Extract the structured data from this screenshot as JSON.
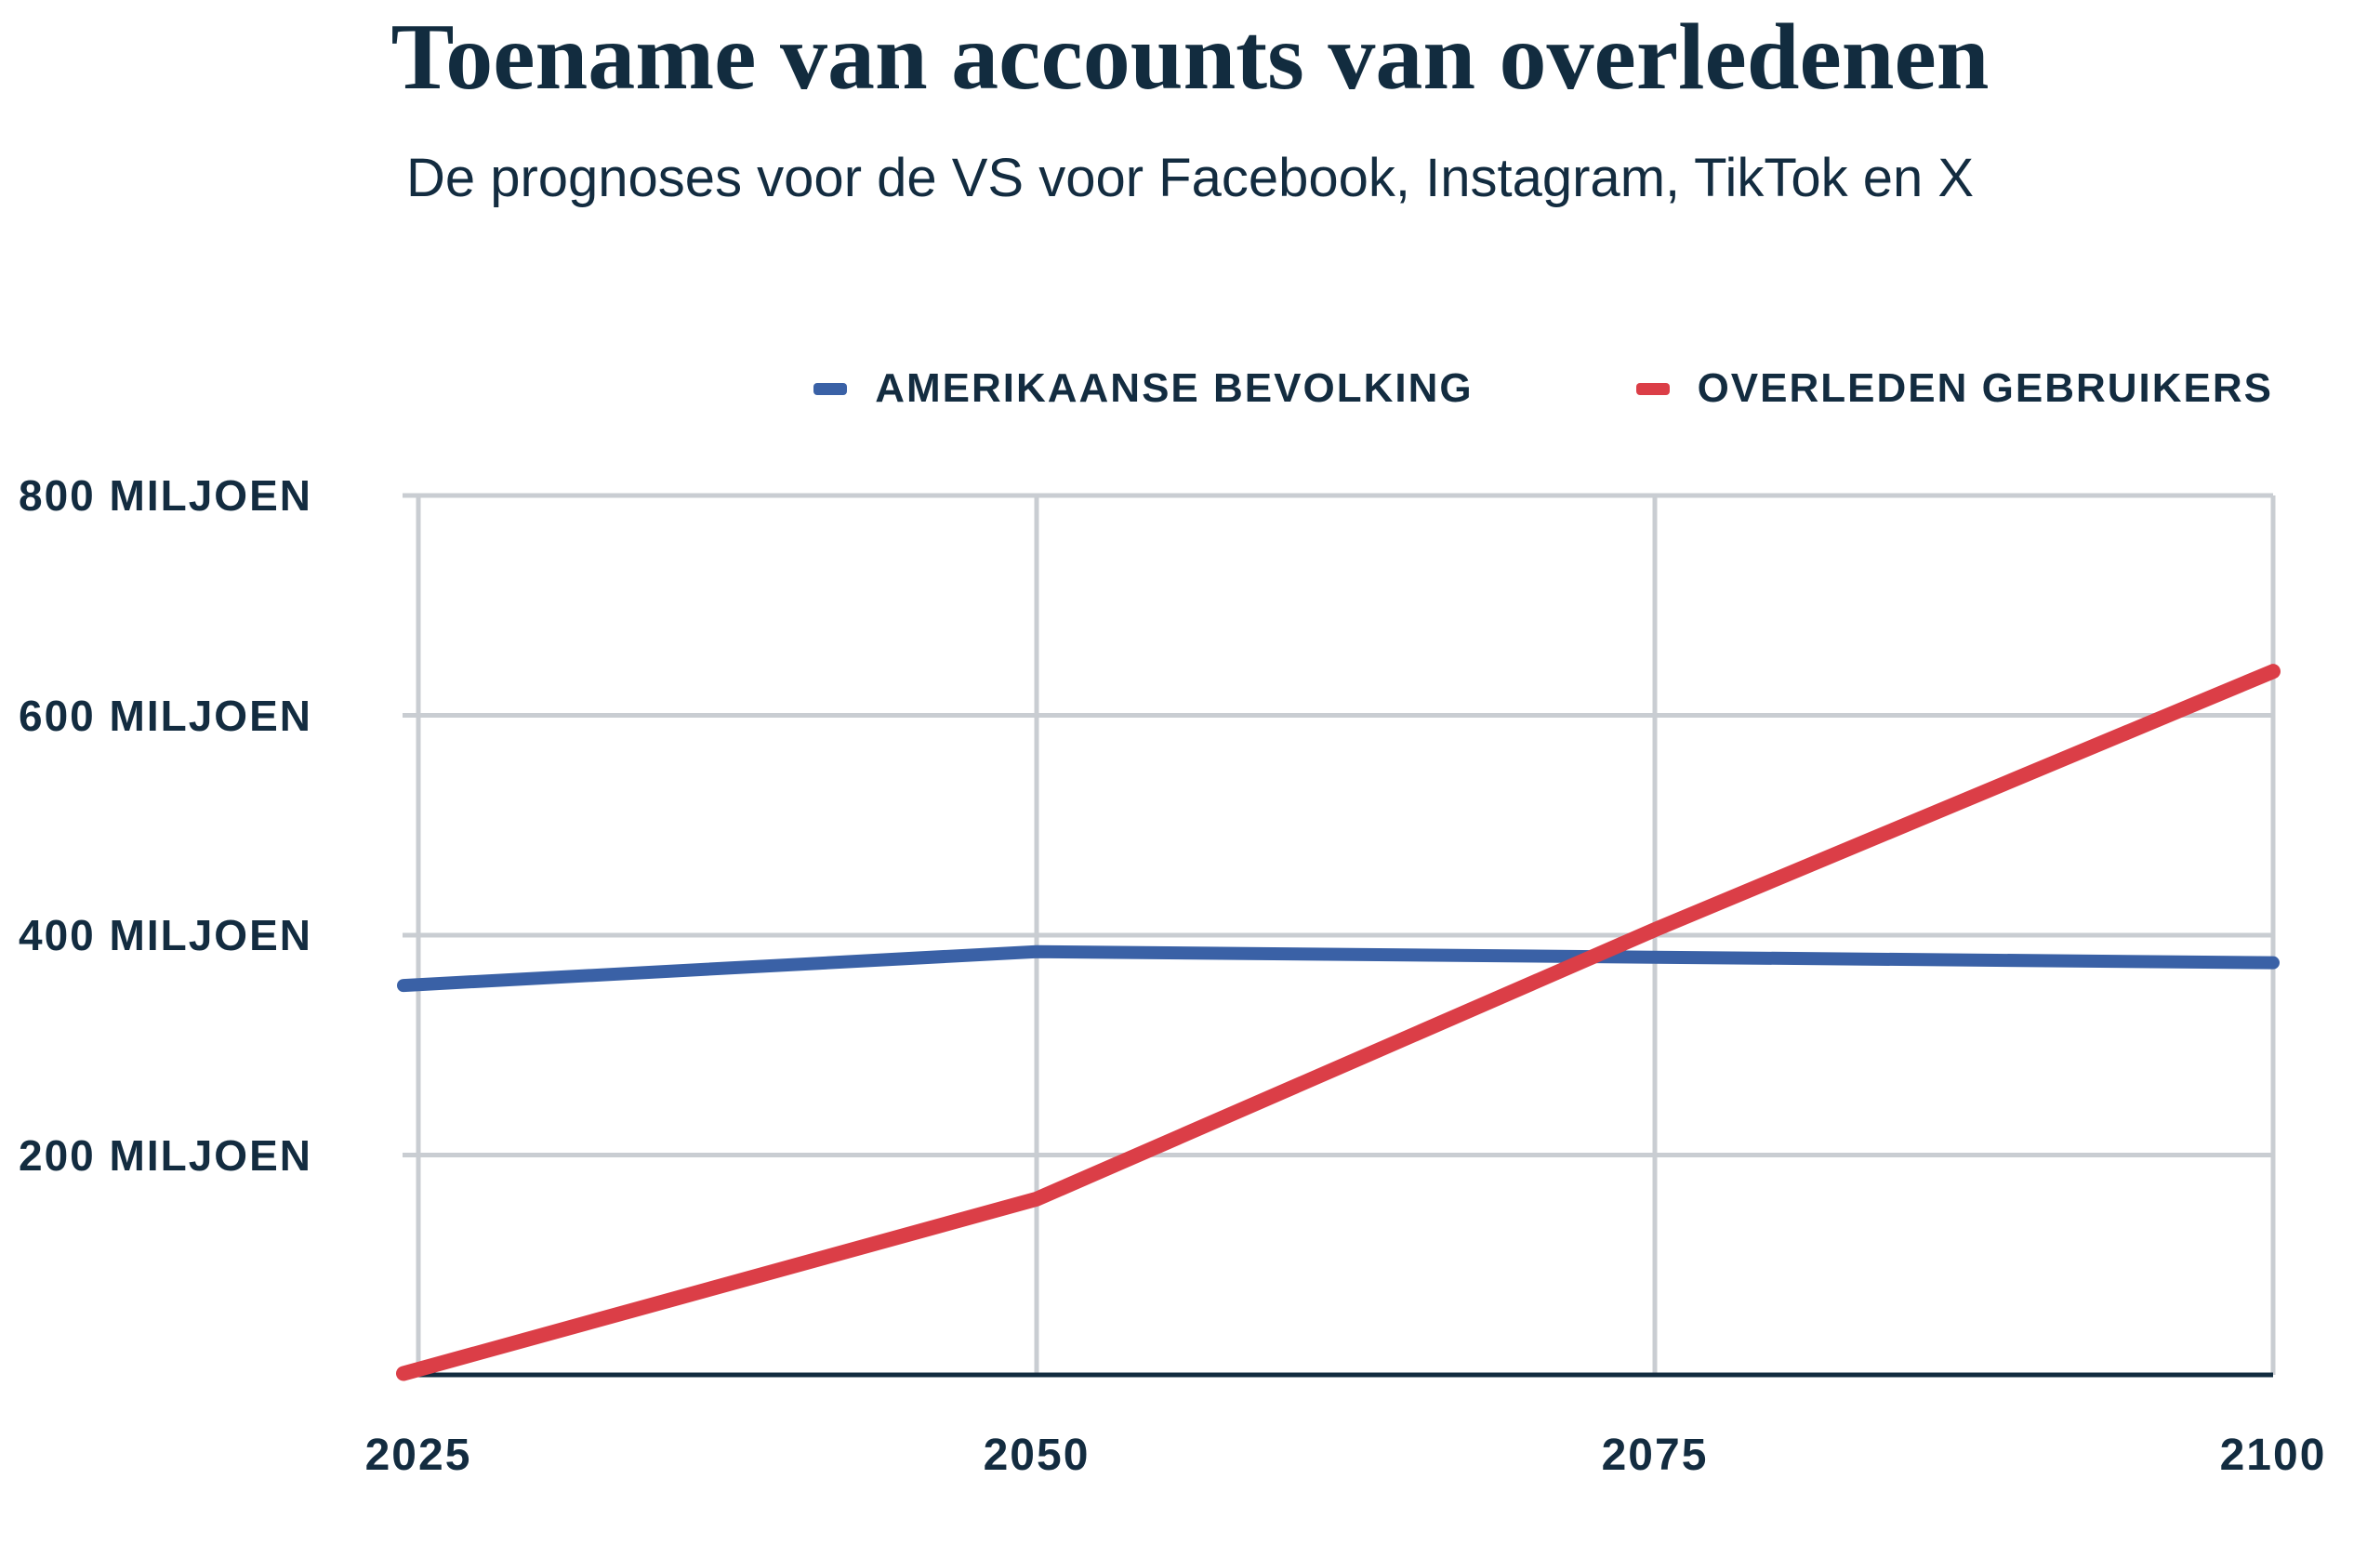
{
  "page": {
    "title": "Toename van accounts van overledenen",
    "subtitle": "De prognoses voor de VS voor Facebook, Instagram, TikTok en X"
  },
  "colors": {
    "navy_text": "#132c40",
    "gridline": "#c9cdd2",
    "axis_line": "#122c3f",
    "population_blue": "#3a61a6",
    "deceased_red": "#db3e47"
  },
  "chart_data": {
    "type": "line",
    "title": "Toename van accounts van overledenen",
    "subtitle": "De prognoses voor de VS voor Facebook, Instagram, TikTok en X",
    "unit": "miljoen",
    "x": [
      2025,
      2050,
      2075,
      2100
    ],
    "xlim": [
      2025,
      2100
    ],
    "ylim": [
      0,
      800
    ],
    "grid": true,
    "legend_position": "top-right",
    "series": [
      {
        "name": "AMERIKAANSE BEVOLKING",
        "color": "#3a61a6",
        "values": [
          355,
          385,
          380,
          375
        ]
      },
      {
        "name": "OVERLEDEN GEBRUIKERS",
        "color": "#db3e47",
        "values": [
          5,
          160,
          405,
          640
        ]
      }
    ],
    "yticks": [
      {
        "value": 800,
        "label": "800 MILJOEN"
      },
      {
        "value": 600,
        "label": "600 MILJOEN"
      },
      {
        "value": 400,
        "label": "400 MILJOEN"
      },
      {
        "value": 200,
        "label": "200 MILJOEN"
      }
    ],
    "xticks": [
      "2025",
      "2050",
      "2075",
      "2100"
    ]
  }
}
